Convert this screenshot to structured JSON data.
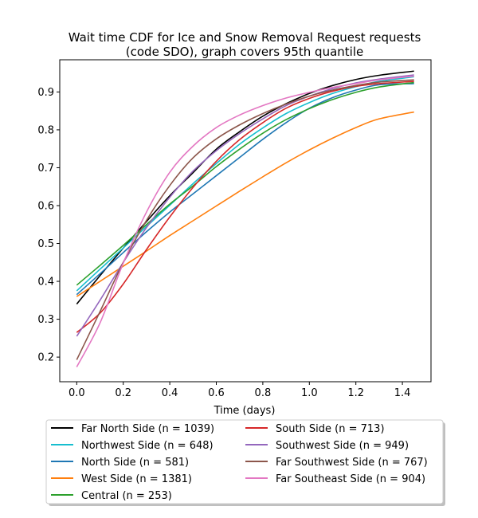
{
  "chart_data": {
    "type": "line",
    "title_lines": [
      "Wait time CDF for Ice and Snow Removal Request  requests",
      "(code SDO), graph covers 95th quantile"
    ],
    "xlabel": "Time (days)",
    "ylabel": "",
    "xlim": [
      -0.073,
      1.523
    ],
    "ylim": [
      0.135,
      0.985
    ],
    "xticks": [
      0.0,
      0.2,
      0.4,
      0.6,
      0.8,
      1.0,
      1.2,
      1.4
    ],
    "xtick_labels": [
      "0.0",
      "0.2",
      "0.4",
      "0.6",
      "0.8",
      "1.0",
      "1.2",
      "1.4"
    ],
    "yticks": [
      0.2,
      0.3,
      0.4,
      0.5,
      0.6,
      0.7,
      0.8,
      0.9
    ],
    "ytick_labels": [
      "0.2",
      "0.3",
      "0.4",
      "0.5",
      "0.6",
      "0.7",
      "0.8",
      "0.9"
    ],
    "grid": false,
    "legend_position": "below",
    "legend_columns": 2,
    "x": [
      0.0,
      0.1,
      0.2,
      0.3,
      0.4,
      0.5,
      0.6,
      0.7,
      0.8,
      0.9,
      1.0,
      1.1,
      1.2,
      1.3,
      1.45
    ],
    "series": [
      {
        "name": "Far North Side (n = 1039)",
        "color": "#000000",
        "values": [
          0.34,
          0.415,
          0.488,
          0.558,
          0.626,
          0.687,
          0.749,
          0.795,
          0.836,
          0.869,
          0.896,
          0.917,
          0.933,
          0.944,
          0.955
        ]
      },
      {
        "name": "Northwest Side (n = 648)",
        "color": "#17becf",
        "values": [
          0.375,
          0.432,
          0.488,
          0.545,
          0.601,
          0.658,
          0.711,
          0.762,
          0.805,
          0.843,
          0.872,
          0.896,
          0.914,
          0.928,
          0.94
        ]
      },
      {
        "name": "North Side (n = 581)",
        "color": "#1f77b4",
        "values": [
          0.365,
          0.42,
          0.476,
          0.531,
          0.583,
          0.631,
          0.679,
          0.727,
          0.775,
          0.819,
          0.857,
          0.885,
          0.905,
          0.919,
          0.922
        ]
      },
      {
        "name": "West Side (n = 1381)",
        "color": "#ff7f0e",
        "values": [
          0.36,
          0.4,
          0.44,
          0.48,
          0.521,
          0.56,
          0.599,
          0.638,
          0.676,
          0.713,
          0.747,
          0.778,
          0.806,
          0.829,
          0.847
        ]
      },
      {
        "name": "Central (n = 253)",
        "color": "#2ca02c",
        "values": [
          0.39,
          0.442,
          0.495,
          0.55,
          0.604,
          0.652,
          0.703,
          0.749,
          0.791,
          0.827,
          0.856,
          0.88,
          0.899,
          0.913,
          0.925
        ]
      },
      {
        "name": "South Side (n = 713)",
        "color": "#d62728",
        "values": [
          0.265,
          0.316,
          0.393,
          0.484,
          0.57,
          0.648,
          0.717,
          0.774,
          0.819,
          0.857,
          0.883,
          0.902,
          0.915,
          0.922,
          0.928
        ]
      },
      {
        "name": "Southwest Side (n = 949)",
        "color": "#9467bd",
        "values": [
          0.255,
          0.35,
          0.45,
          0.542,
          0.622,
          0.691,
          0.745,
          0.79,
          0.829,
          0.864,
          0.889,
          0.909,
          0.924,
          0.934,
          0.945
        ]
      },
      {
        "name": "Far Southwest Side (n = 767)",
        "color": "#8c564b",
        "values": [
          0.193,
          0.32,
          0.45,
          0.561,
          0.653,
          0.726,
          0.776,
          0.813,
          0.843,
          0.868,
          0.889,
          0.905,
          0.917,
          0.926,
          0.932
        ]
      },
      {
        "name": "Far Southeast Side (n = 904)",
        "color": "#e377c2",
        "values": [
          0.174,
          0.29,
          0.448,
          0.583,
          0.688,
          0.757,
          0.806,
          0.839,
          0.864,
          0.884,
          0.899,
          0.912,
          0.922,
          0.932,
          0.942
        ]
      }
    ]
  }
}
